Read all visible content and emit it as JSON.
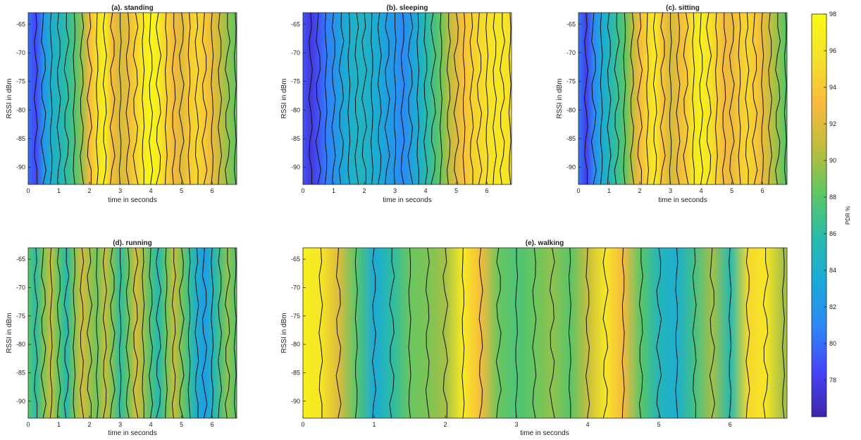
{
  "figure": {
    "xlabel": "time in seconds",
    "ylabel": "RSSI in dBm",
    "colorbar": {
      "label": "PDR %",
      "range": [
        76,
        98
      ],
      "ticks": [
        "78",
        "80",
        "82",
        "84",
        "86",
        "88",
        "90",
        "92",
        "94",
        "96",
        "98"
      ]
    },
    "colormap": [
      "#3e26a8",
      "#4743f8",
      "#2e87f7",
      "#1aa9d9",
      "#28bbac",
      "#5dc762",
      "#bebd3c",
      "#f8ba3d",
      "#f5e12a",
      "#f9fb15"
    ]
  },
  "chart_data": [
    {
      "type": "heatmap",
      "title": "(a). standing",
      "xlabel": "time in seconds",
      "ylabel": "RSSI in dBm",
      "xlim": [
        0,
        6.8
      ],
      "ylim": [
        -93,
        -63
      ],
      "xticks": [
        "0",
        "1",
        "2",
        "3",
        "4",
        "5",
        "6"
      ],
      "yticks": [
        "-65",
        "-70",
        "-75",
        "-80",
        "-85",
        "-90"
      ],
      "time_s": [
        0,
        0.25,
        0.5,
        0.75,
        1,
        1.25,
        1.5,
        1.75,
        2,
        2.25,
        2.5,
        2.75,
        3,
        3.25,
        3.5,
        3.75,
        4,
        4.25,
        4.5,
        4.75,
        5,
        5.25,
        5.5,
        5.75,
        6,
        6.25,
        6.5,
        6.75
      ],
      "pdr_percent": [
        80,
        78.5,
        82,
        84,
        85,
        86,
        87.5,
        89.5,
        93,
        95.5,
        97,
        93,
        91.5,
        92.5,
        94.5,
        96.5,
        97.5,
        96.5,
        94.5,
        93,
        92,
        94,
        95,
        94,
        92.5,
        91,
        89.5,
        88.5
      ]
    },
    {
      "type": "heatmap",
      "title": "(b). sleeping",
      "xlabel": "time in seconds",
      "ylabel": "RSSI in dBm",
      "xlim": [
        0,
        6.8
      ],
      "ylim": [
        -93,
        -63
      ],
      "xticks": [
        "0",
        "1",
        "2",
        "3",
        "4",
        "5",
        "6"
      ],
      "yticks": [
        "-65",
        "-70",
        "-75",
        "-80",
        "-85",
        "-90"
      ],
      "time_s": [
        0,
        0.25,
        0.5,
        0.75,
        1,
        1.25,
        1.5,
        1.75,
        2,
        2.25,
        2.5,
        2.75,
        3,
        3.25,
        3.5,
        3.75,
        4,
        4.25,
        4.5,
        4.75,
        5,
        5.25,
        5.5,
        5.75,
        6,
        6.25,
        6.5,
        6.75
      ],
      "pdr_percent": [
        79,
        77.5,
        79,
        80.5,
        81.5,
        83,
        84,
        84.5,
        84.5,
        84,
        83.5,
        82.5,
        82,
        81,
        82.5,
        84,
        85.5,
        87,
        88.5,
        90.5,
        92,
        93.5,
        94.5,
        95,
        95.5,
        96,
        96,
        95.5
      ]
    },
    {
      "type": "heatmap",
      "title": "(c). sitting",
      "xlabel": "time in seconds",
      "ylabel": "RSSI in dBm",
      "xlim": [
        0,
        6.8
      ],
      "ylim": [
        -93,
        -63
      ],
      "xticks": [
        "0",
        "1",
        "2",
        "3",
        "4",
        "5",
        "6"
      ],
      "yticks": [
        "-65",
        "-70",
        "-75",
        "-80",
        "-85",
        "-90"
      ],
      "time_s": [
        0,
        0.25,
        0.5,
        0.75,
        1,
        1.25,
        1.5,
        1.75,
        2,
        2.25,
        2.5,
        2.75,
        3,
        3.25,
        3.5,
        3.75,
        4,
        4.25,
        4.5,
        4.75,
        5,
        5.25,
        5.5,
        5.75,
        6,
        6.25,
        6.5,
        6.75
      ],
      "pdr_percent": [
        80.5,
        78,
        81,
        83.5,
        85,
        86.5,
        88,
        90.5,
        93,
        95,
        96.5,
        93.5,
        91.5,
        92.5,
        94,
        96,
        97,
        96,
        94.5,
        93,
        92.5,
        94,
        95,
        94,
        92.5,
        91,
        89.5,
        88
      ]
    },
    {
      "type": "heatmap",
      "title": "(d). running",
      "xlabel": "time in seconds",
      "ylabel": "RSSI in dBm",
      "xlim": [
        0,
        6.8
      ],
      "ylim": [
        -93,
        -63
      ],
      "xticks": [
        "0",
        "1",
        "2",
        "3",
        "4",
        "5",
        "6"
      ],
      "yticks": [
        "-65",
        "-70",
        "-75",
        "-80",
        "-85",
        "-90"
      ],
      "time_s": [
        0,
        0.25,
        0.5,
        0.75,
        1,
        1.25,
        1.5,
        1.75,
        2,
        2.25,
        2.5,
        2.75,
        3,
        3.25,
        3.5,
        3.75,
        4,
        4.25,
        4.5,
        4.75,
        5,
        5.25,
        5.5,
        5.75,
        6,
        6.25,
        6.5,
        6.75
      ],
      "pdr_percent": [
        88,
        86,
        89,
        91,
        88,
        85.5,
        89,
        91.5,
        90,
        88.5,
        91,
        89,
        86,
        88.5,
        91.5,
        90,
        87.5,
        85.5,
        88.5,
        91,
        89,
        86.5,
        84,
        82.5,
        84.5,
        87,
        89.5,
        88
      ]
    },
    {
      "type": "heatmap",
      "title": "(e). walking",
      "xlabel": "time in seconds",
      "ylabel": "RSSI in dBm",
      "xlim": [
        0,
        6.8
      ],
      "ylim": [
        -93,
        -63
      ],
      "xticks": [
        "0",
        "1",
        "2",
        "3",
        "4",
        "5",
        "6"
      ],
      "yticks": [
        "-65",
        "-70",
        "-75",
        "-80",
        "-85",
        "-90"
      ],
      "time_s": [
        0,
        0.25,
        0.5,
        0.75,
        1,
        1.25,
        1.5,
        1.75,
        2,
        2.25,
        2.5,
        2.75,
        3,
        3.25,
        3.5,
        3.75,
        4,
        4.25,
        4.5,
        4.75,
        5,
        5.25,
        5.5,
        5.75,
        6,
        6.25,
        6.5,
        6.75
      ],
      "pdr_percent": [
        97,
        96,
        92,
        88,
        83.5,
        86,
        88.5,
        89,
        90,
        96.5,
        93,
        88.5,
        87.5,
        88.5,
        89.5,
        88,
        91,
        96,
        93,
        88,
        85,
        84,
        87,
        90,
        85.5,
        95,
        96,
        90
      ]
    }
  ]
}
